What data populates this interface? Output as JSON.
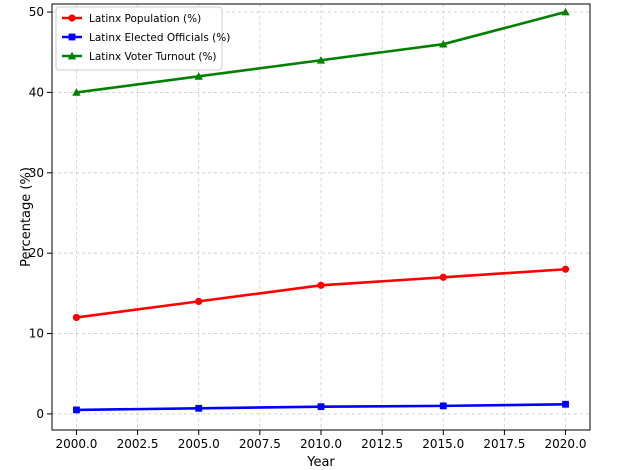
{
  "chart_data": {
    "type": "line",
    "title": "",
    "xlabel": "Year",
    "ylabel": "Percentage (%)",
    "x": [
      2000,
      2005,
      2010,
      2015,
      2020
    ],
    "xticks": [
      "2000.0",
      "2002.5",
      "2005.0",
      "2007.5",
      "2010.0",
      "2012.5",
      "2015.0",
      "2017.5",
      "2020.0"
    ],
    "yticks": [
      "0",
      "10",
      "20",
      "30",
      "40",
      "50"
    ],
    "xlim": [
      1999.0,
      2021.0
    ],
    "ylim": [
      -2,
      51
    ],
    "grid": true,
    "legend_position": "top-left",
    "series": [
      {
        "name": "Latinx Population (%)",
        "values": [
          12,
          14,
          16,
          17,
          18
        ],
        "color": "#ff0000",
        "marker": "circle"
      },
      {
        "name": "Latinx Elected Officials (%)",
        "values": [
          0.5,
          0.7,
          0.9,
          1.0,
          1.2
        ],
        "color": "#0000ff",
        "marker": "square"
      },
      {
        "name": "Latinx Voter Turnout (%)",
        "values": [
          40,
          42,
          44,
          46,
          50
        ],
        "color": "#008000",
        "marker": "triangle"
      }
    ]
  }
}
